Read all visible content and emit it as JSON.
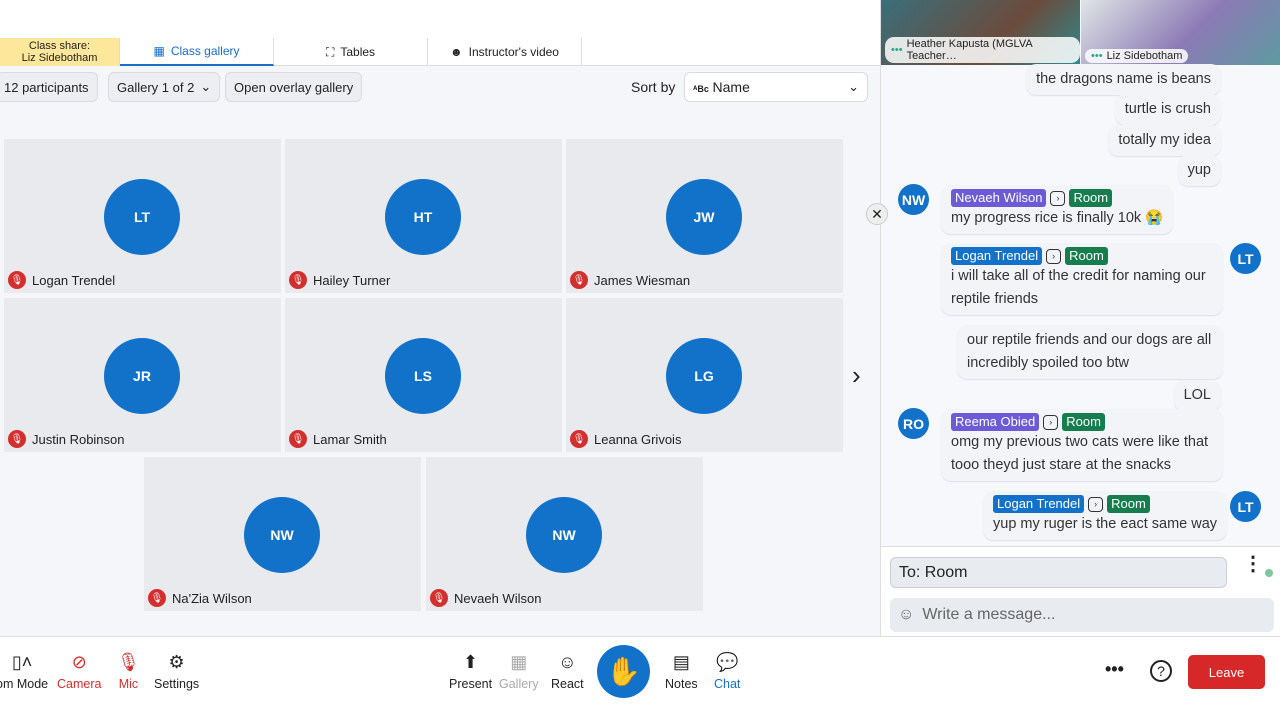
{
  "tabs": {
    "share_line1": "Class share:",
    "share_line2": "Liz Sidebotham",
    "class_gallery": "Class gallery",
    "tables": "Tables",
    "instructor_video": "Instructor's video"
  },
  "toolbar": {
    "participants": "12 participants",
    "gallery": "Gallery 1 of 2",
    "overlay": "Open overlay gallery",
    "sort_by": "Sort by",
    "sort_value": "Name"
  },
  "tiles": [
    {
      "initials": "LT",
      "name": "Logan Trendel"
    },
    {
      "initials": "HT",
      "name": "Hailey Turner"
    },
    {
      "initials": "JW",
      "name": "James Wiesman"
    },
    {
      "initials": "JR",
      "name": "Justin Robinson"
    },
    {
      "initials": "LS",
      "name": "Lamar Smith"
    },
    {
      "initials": "LG",
      "name": "Leanna Grivois"
    },
    {
      "initials": "NW",
      "name": "Na'Zia Wilson"
    },
    {
      "initials": "NW",
      "name": "Nevaeh Wilson"
    }
  ],
  "videos": [
    {
      "name": "Heather Kapusta (MGLVA Teacher…"
    },
    {
      "name": "Liz Sidebotham"
    }
  ],
  "chat": {
    "m1": "the dragons name is beans",
    "m2": "turtle is crush",
    "m3": "totally my idea",
    "m4": "yup",
    "m5": {
      "initials": "NW",
      "sender": "Nevaeh Wilson",
      "to": "Room",
      "text": "my progress rice is finally 10k 😭"
    },
    "m6": {
      "initials": "LT",
      "sender": "Logan Trendel",
      "to": "Room",
      "text": "i will take all of the credit for naming our reptile friends"
    },
    "m7": "our reptile friends and our dogs are all incredibly spoiled too btw",
    "m8": "LOL",
    "m9": {
      "initials": "RO",
      "sender": "Reema Obied",
      "to": "Room",
      "text": "omg my previous two cats were like that tooo theyd just stare at the snacks"
    },
    "m10": {
      "initials": "LT",
      "sender": "Logan Trendel",
      "to": "Room",
      "text": "yup my ruger is the eact same way"
    },
    "to": "To: Room",
    "placeholder": "Write a message..."
  },
  "bottom": {
    "room_mode": "om Mode",
    "camera": "Camera",
    "mic": "Mic",
    "settings": "Settings",
    "present": "Present",
    "gallery": "Gallery",
    "react": "React",
    "notes": "Notes",
    "chat": "Chat",
    "leave": "Leave"
  },
  "colors": {
    "accent": "#1272c9",
    "leave": "#d62828",
    "hand": "#1272c9",
    "muted": "#d32f2f"
  }
}
